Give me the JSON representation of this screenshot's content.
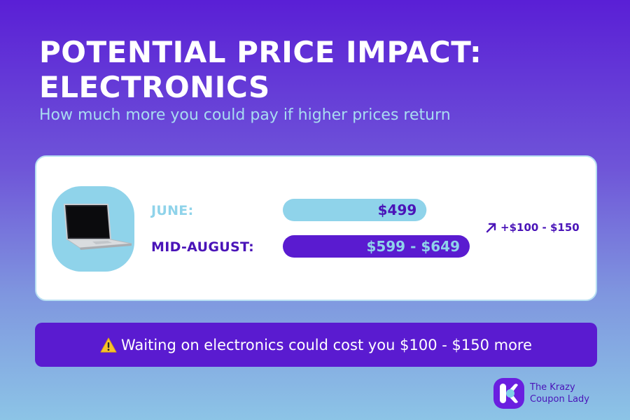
{
  "header": {
    "title": "POTENTIAL PRICE IMPACT: ELECTRONICS",
    "subtitle": "How much more you could pay if higher prices return"
  },
  "chart_data": {
    "type": "bar",
    "orientation": "horizontal",
    "title": "POTENTIAL PRICE IMPACT: ELECTRONICS",
    "subtitle": "How much more you could pay if higher prices return",
    "categories": [
      "JUNE:",
      "MID-AUGUST:"
    ],
    "values": [
      499,
      649
    ],
    "ranges": [
      [
        499,
        499
      ],
      [
        599,
        649
      ]
    ],
    "data_labels": [
      "$499",
      "$599 - $649"
    ],
    "bar_colors": [
      "#8fd3ea",
      "#5a1bd0"
    ],
    "label_colors": [
      "#8fd3ea",
      "#4a14b8"
    ],
    "value_text_colors": [
      "#4a14b8",
      "#8fd3ea"
    ],
    "change_label": "+$100 - $150",
    "change_icon": "arrow-up-right-icon",
    "product_icon": "laptop-icon",
    "xlim": [
      0,
      649
    ],
    "grid": false,
    "legend": "none"
  },
  "banner": {
    "icon": "warning-icon",
    "text": "Waiting on electronics could cost you $100 - $150 more"
  },
  "brand": {
    "line1": "The Krazy",
    "line2": "Coupon Lady",
    "color": "#6a1ee0"
  },
  "colors": {
    "background_top": "#5a1fd6",
    "background_bottom": "#8cc4e6",
    "accent_purple": "#5a1bd0",
    "accent_blue": "#8fd3ea"
  }
}
